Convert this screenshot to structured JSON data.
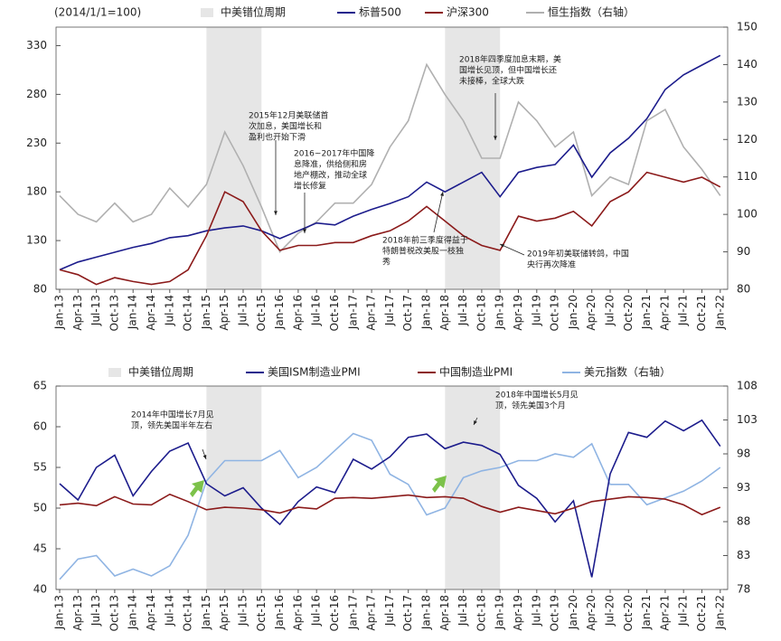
{
  "chart_data": [
    {
      "type": "line",
      "axis_note": "(2014/1/1=100)",
      "shade_label": "中美错位周期",
      "shade_color": "#e6e6e6",
      "shaded_periods": [
        [
          "Jan-15",
          "Oct-15"
        ],
        [
          "Apr-18",
          "Jan-19"
        ]
      ],
      "categories": [
        "Jan-13",
        "Apr-13",
        "Jul-13",
        "Oct-13",
        "Jan-14",
        "Apr-14",
        "Jul-14",
        "Oct-14",
        "Jan-15",
        "Apr-15",
        "Jul-15",
        "Oct-15",
        "Jan-16",
        "Apr-16",
        "Jul-16",
        "Oct-16",
        "Jan-17",
        "Apr-17",
        "Jul-17",
        "Oct-17",
        "Jan-18",
        "Apr-18",
        "Jul-18",
        "Oct-18",
        "Jan-19",
        "Apr-19",
        "Jul-19",
        "Oct-19",
        "Jan-20",
        "Apr-20",
        "Jul-20",
        "Oct-20",
        "Jan-21",
        "Apr-21",
        "Jul-21",
        "Oct-21",
        "Jan-22"
      ],
      "ylim": [
        80,
        349
      ],
      "yticks": [
        80,
        130,
        180,
        230,
        280,
        330
      ],
      "y2lim": [
        80,
        150
      ],
      "y2ticks": [
        80,
        90,
        100,
        110,
        120,
        130,
        140,
        150
      ],
      "series": [
        {
          "name": "标普500",
          "color": "#1c1c8c",
          "values": [
            100,
            108,
            113,
            118,
            123,
            127,
            133,
            135,
            140,
            143,
            145,
            140,
            132,
            140,
            148,
            146,
            155,
            162,
            168,
            175,
            190,
            180,
            190,
            200,
            175,
            200,
            205,
            208,
            228,
            195,
            220,
            235,
            255,
            285,
            300,
            310,
            320
          ]
        },
        {
          "name": "沪深300",
          "color": "#8b1a1a",
          "values": [
            100,
            95,
            85,
            92,
            88,
            85,
            88,
            100,
            135,
            180,
            170,
            140,
            120,
            125,
            125,
            128,
            128,
            135,
            140,
            150,
            165,
            150,
            135,
            125,
            120,
            155,
            150,
            153,
            160,
            145,
            170,
            180,
            200,
            195,
            190,
            195,
            185
          ]
        },
        {
          "name": "恒生指数（右轴）",
          "color": "#b0b0b0",
          "axis": "y2",
          "values": [
            105,
            100,
            98,
            103,
            98,
            100,
            107,
            102,
            108,
            122,
            113,
            102,
            90,
            95,
            98,
            103,
            103,
            108,
            118,
            125,
            140,
            132,
            125,
            115,
            115,
            130,
            125,
            118,
            122,
            105,
            110,
            108,
            125,
            128,
            118,
            112,
            105
          ]
        }
      ],
      "annotations": [
        {
          "lines": [
            "2015年12月美联储首",
            "次加息，美国增长和",
            "盈利也开始下滑"
          ]
        },
        {
          "lines": [
            "2016~2017年中国降",
            "息降准，供给侧和房",
            "地产棚改，推动全球",
            "增长修复"
          ]
        },
        {
          "lines": [
            "2018年前三季度得益于",
            "特朗普税改美股一枝独",
            "秀"
          ]
        },
        {
          "lines": [
            "2018年四季度加息末期，美",
            "国增长见顶，但中国增长还",
            "未接棒，全球大跌"
          ]
        },
        {
          "lines": [
            "2019年初美联储转鸽，中国",
            "央行再次降准"
          ]
        }
      ]
    },
    {
      "type": "line",
      "shade_label": "中美错位周期",
      "shade_color": "#e6e6e6",
      "shaded_periods": [
        [
          "Jan-15",
          "Oct-15"
        ],
        [
          "Apr-18",
          "Jan-19"
        ]
      ],
      "categories": [
        "Jan-13",
        "Apr-13",
        "Jul-13",
        "Oct-13",
        "Jan-14",
        "Apr-14",
        "Jul-14",
        "Oct-14",
        "Jan-15",
        "Apr-15",
        "Jul-15",
        "Oct-15",
        "Jan-16",
        "Apr-16",
        "Jul-16",
        "Oct-16",
        "Jan-17",
        "Apr-17",
        "Jul-17",
        "Oct-17",
        "Jan-18",
        "Apr-18",
        "Jul-18",
        "Oct-18",
        "Jan-19",
        "Apr-19",
        "Jul-19",
        "Oct-19",
        "Jan-20",
        "Apr-20",
        "Jul-20",
        "Oct-20",
        "Jan-21",
        "Apr-21",
        "Jul-21",
        "Oct-21",
        "Jan-22"
      ],
      "ylim": [
        40,
        65
      ],
      "yticks": [
        40,
        45,
        50,
        55,
        60,
        65
      ],
      "y2lim": [
        78,
        108
      ],
      "y2ticks": [
        78,
        83,
        88,
        93,
        98,
        103,
        108
      ],
      "series": [
        {
          "name": "美国ISM制造业PMI",
          "color": "#1c1c8c",
          "values": [
            53,
            51,
            55,
            56.5,
            51.5,
            54.5,
            57,
            58,
            53,
            51.5,
            52.5,
            50,
            48,
            50.8,
            52.6,
            51.9,
            56,
            54.8,
            56.3,
            58.7,
            59.1,
            57.3,
            58.1,
            57.7,
            56.6,
            52.8,
            51.2,
            48.3,
            50.9,
            41.5,
            54.2,
            59.3,
            58.7,
            60.7,
            59.5,
            60.8,
            57.6
          ]
        },
        {
          "name": "中国制造业PMI",
          "color": "#8b1a1a",
          "values": [
            50.4,
            50.6,
            50.3,
            51.4,
            50.5,
            50.4,
            51.7,
            50.8,
            49.8,
            50.1,
            50,
            49.8,
            49.4,
            50.1,
            49.9,
            51.2,
            51.3,
            51.2,
            51.4,
            51.6,
            51.3,
            51.4,
            51.2,
            50.2,
            49.5,
            50.1,
            49.7,
            49.3,
            50,
            50.8,
            51.1,
            51.4,
            51.3,
            51.1,
            50.4,
            49.2,
            50.1
          ]
        },
        {
          "name": "美元指数（右轴）",
          "color": "#8fb4e3",
          "axis": "y2",
          "values": [
            79.5,
            82.5,
            83,
            80,
            81,
            80,
            81.5,
            86,
            94,
            97,
            97,
            97,
            98.5,
            94.5,
            96,
            98.5,
            101,
            100,
            95,
            93.5,
            89,
            90,
            94.5,
            95.5,
            96,
            97,
            97,
            98,
            97.5,
            99.5,
            93.5,
            93.5,
            90.5,
            91.5,
            92.5,
            94,
            96
          ]
        }
      ],
      "annotations": [
        {
          "lines": [
            "2014年中国增长7月见",
            "顶，领先美国半年左右"
          ]
        },
        {
          "lines": [
            "2018年中国增长5月见",
            "顶，领先美国3个月"
          ]
        }
      ]
    }
  ]
}
